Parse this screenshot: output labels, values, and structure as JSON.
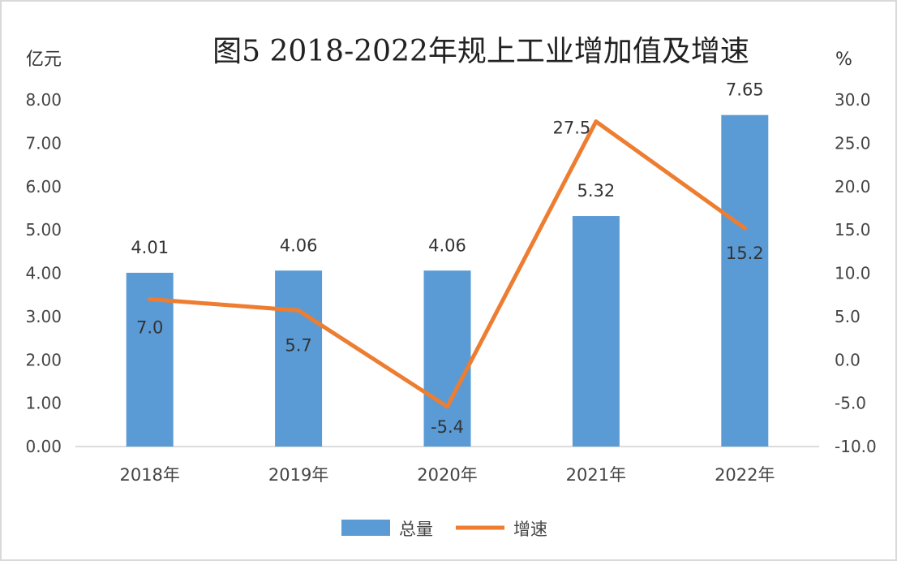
{
  "chart_data": {
    "type": "bar",
    "title": "图5   2018-2022年规上工业增加值及增速",
    "left_axis_unit": "亿元",
    "right_axis_unit": "%",
    "categories": [
      "2018年",
      "2019年",
      "2020年",
      "2021年",
      "2022年"
    ],
    "series": [
      {
        "name": "总量",
        "kind": "bar",
        "axis": "left",
        "color": "#5B9BD5",
        "values": [
          4.01,
          4.06,
          4.06,
          5.32,
          7.65
        ],
        "labels": [
          "4.01",
          "4.06",
          "4.06",
          "5.32",
          "7.65"
        ]
      },
      {
        "name": "增速",
        "kind": "line",
        "axis": "right",
        "color": "#ED7D31",
        "values": [
          7.0,
          5.7,
          -5.4,
          27.5,
          15.2
        ],
        "labels": [
          "7.0",
          "5.7",
          "-5.4",
          "27.5",
          "15.2"
        ]
      }
    ],
    "left_axis": {
      "ylim": [
        0,
        8
      ],
      "ticks": [
        "0.00",
        "1.00",
        "2.00",
        "3.00",
        "4.00",
        "5.00",
        "6.00",
        "7.00",
        "8.00"
      ]
    },
    "right_axis": {
      "ylim": [
        -10,
        30
      ],
      "ticks": [
        "-10.0",
        "-5.0",
        "0.0",
        "5.0",
        "10.0",
        "15.0",
        "20.0",
        "25.0",
        "30.0"
      ]
    },
    "grid": false,
    "legend_position": "bottom"
  }
}
